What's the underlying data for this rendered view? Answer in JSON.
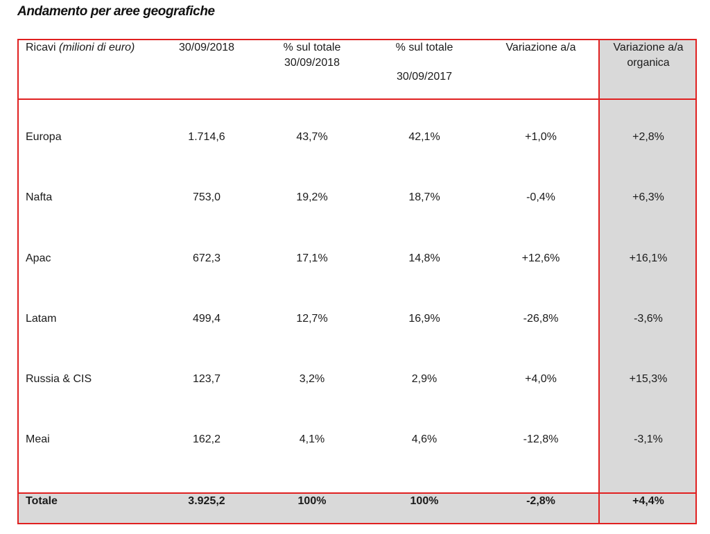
{
  "title": "Andamento per aree geografiche",
  "header": {
    "ricavi_label": "Ricavi",
    "ricavi_unit": "(milioni di euro)",
    "col_2018": "30/09/2018",
    "pct_2018_line1": "% sul totale",
    "pct_2018_line2": "30/09/2018",
    "pct_2017_line1": "% sul totale",
    "pct_2017_line2": "30/09/2017",
    "var": "Variazione a/a",
    "var_org_line1": "Variazione a/a",
    "var_org_line2": "organica"
  },
  "rows": [
    {
      "area": "Europa",
      "value": "1.714,6",
      "pct2018": "43,7%",
      "pct2017": "42,1%",
      "var": "+1,0%",
      "var_org": "+2,8%"
    },
    {
      "area": "Nafta",
      "value": "753,0",
      "pct2018": "19,2%",
      "pct2017": "18,7%",
      "var": "-0,4%",
      "var_org": "+6,3%"
    },
    {
      "area": "Apac",
      "value": "672,3",
      "pct2018": "17,1%",
      "pct2017": "14,8%",
      "var": "+12,6%",
      "var_org": "+16,1%"
    },
    {
      "area": "Latam",
      "value": "499,4",
      "pct2018": "12,7%",
      "pct2017": "16,9%",
      "var": "-26,8%",
      "var_org": "-3,6%"
    },
    {
      "area": "Russia & CIS",
      "value": "123,7",
      "pct2018": "3,2%",
      "pct2017": "2,9%",
      "var": "+4,0%",
      "var_org": "+15,3%"
    },
    {
      "area": "Meai",
      "value": "162,2",
      "pct2018": "4,1%",
      "pct2017": "4,6%",
      "var": "-12,8%",
      "var_org": "-3,1%"
    }
  ],
  "total": {
    "area": "Totale",
    "value": "3.925,2",
    "pct2018": "100%",
    "pct2017": "100%",
    "var": "-2,8%",
    "var_org": "+4,4%"
  },
  "colors": {
    "border": "#e02020",
    "shade": "#d9d9d9"
  }
}
